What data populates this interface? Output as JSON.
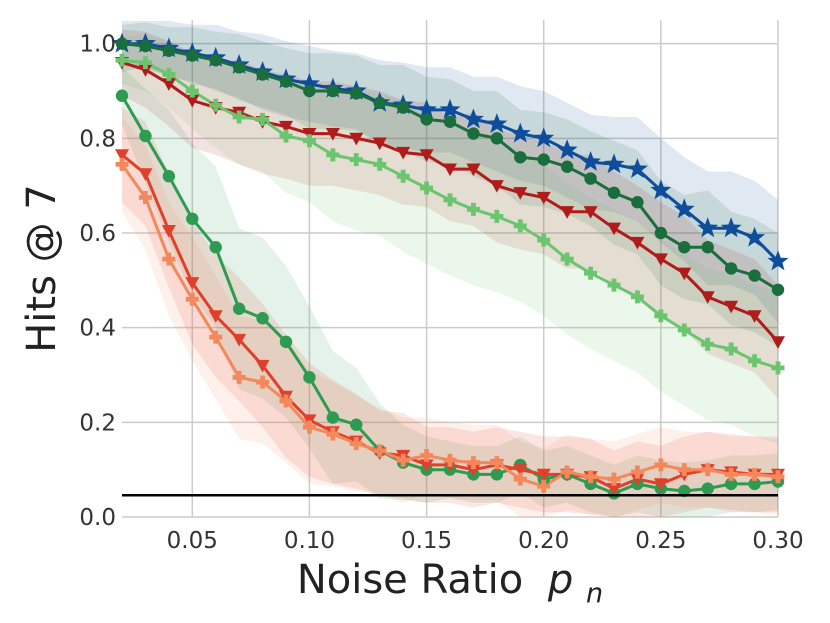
{
  "chart_data": {
    "type": "line",
    "title": "",
    "xlabel": "Noise Ratio",
    "xlabel_symbol": "p",
    "xlabel_subscript": "n",
    "ylabel": "Hits @ 7",
    "xlim": [
      0.02,
      0.3
    ],
    "ylim": [
      0.0,
      1.05
    ],
    "grid": true,
    "x_ticks": [
      0.05,
      0.1,
      0.15,
      0.2,
      0.25,
      0.3
    ],
    "x_tick_labels": [
      "0.05",
      "0.10",
      "0.15",
      "0.20",
      "0.25",
      "0.30"
    ],
    "y_ticks": [
      0.0,
      0.2,
      0.4,
      0.6,
      0.8,
      1.0
    ],
    "y_tick_labels": [
      "0.0",
      "0.2",
      "0.4",
      "0.6",
      "0.8",
      "1.0"
    ],
    "baseline": {
      "y": 0.046,
      "color": "#000000"
    },
    "x": [
      0.02,
      0.03,
      0.04,
      0.05,
      0.06,
      0.07,
      0.08,
      0.09,
      0.1,
      0.11,
      0.12,
      0.13,
      0.14,
      0.15,
      0.16,
      0.17,
      0.18,
      0.19,
      0.2,
      0.21,
      0.22,
      0.23,
      0.24,
      0.25,
      0.26,
      0.27,
      0.28,
      0.29,
      0.3
    ],
    "series": [
      {
        "name": "series-blue-star",
        "color": "#0e4d9c",
        "marker": "star",
        "values": [
          1.0,
          1.0,
          0.99,
          0.98,
          0.97,
          0.955,
          0.94,
          0.925,
          0.915,
          0.905,
          0.9,
          0.875,
          0.87,
          0.86,
          0.86,
          0.84,
          0.83,
          0.81,
          0.8,
          0.775,
          0.75,
          0.745,
          0.735,
          0.69,
          0.65,
          0.61,
          0.61,
          0.59,
          0.54
        ],
        "band": [
          0.06,
          0.05,
          0.06,
          0.06,
          0.07,
          0.07,
          0.08,
          0.08,
          0.08,
          0.08,
          0.08,
          0.09,
          0.09,
          0.09,
          0.09,
          0.09,
          0.1,
          0.1,
          0.1,
          0.1,
          0.1,
          0.1,
          0.11,
          0.11,
          0.11,
          0.12,
          0.12,
          0.12,
          0.13
        ]
      },
      {
        "name": "series-darkgreen-circle",
        "color": "#1a6e3c",
        "marker": "circle",
        "values": [
          1.0,
          0.995,
          0.985,
          0.975,
          0.965,
          0.95,
          0.935,
          0.92,
          0.9,
          0.9,
          0.895,
          0.875,
          0.865,
          0.84,
          0.835,
          0.81,
          0.8,
          0.76,
          0.755,
          0.74,
          0.715,
          0.685,
          0.665,
          0.6,
          0.57,
          0.57,
          0.525,
          0.51,
          0.48
        ],
        "band": [
          0.04,
          0.05,
          0.05,
          0.06,
          0.06,
          0.07,
          0.07,
          0.07,
          0.08,
          0.08,
          0.08,
          0.08,
          0.09,
          0.09,
          0.09,
          0.09,
          0.1,
          0.1,
          0.1,
          0.1,
          0.1,
          0.11,
          0.11,
          0.11,
          0.11,
          0.12,
          0.12,
          0.12,
          0.12
        ]
      },
      {
        "name": "series-darkred-triangle",
        "color": "#b01c1c",
        "marker": "triangle-down",
        "values": [
          0.96,
          0.945,
          0.915,
          0.88,
          0.865,
          0.855,
          0.835,
          0.825,
          0.81,
          0.81,
          0.8,
          0.79,
          0.77,
          0.765,
          0.735,
          0.735,
          0.7,
          0.685,
          0.675,
          0.645,
          0.645,
          0.61,
          0.58,
          0.545,
          0.515,
          0.465,
          0.445,
          0.425,
          0.37
        ],
        "band": [
          0.07,
          0.08,
          0.09,
          0.1,
          0.1,
          0.11,
          0.11,
          0.11,
          0.11,
          0.11,
          0.11,
          0.11,
          0.11,
          0.11,
          0.11,
          0.12,
          0.12,
          0.12,
          0.12,
          0.12,
          0.12,
          0.12,
          0.12,
          0.12,
          0.12,
          0.12,
          0.12,
          0.12,
          0.12
        ]
      },
      {
        "name": "series-lightgreen-plus",
        "color": "#6cc46f",
        "marker": "plus",
        "values": [
          0.965,
          0.96,
          0.935,
          0.9,
          0.87,
          0.845,
          0.84,
          0.805,
          0.795,
          0.765,
          0.755,
          0.745,
          0.72,
          0.695,
          0.67,
          0.65,
          0.635,
          0.615,
          0.585,
          0.545,
          0.515,
          0.49,
          0.465,
          0.425,
          0.395,
          0.365,
          0.355,
          0.33,
          0.315
        ],
        "band": [
          0.05,
          0.06,
          0.07,
          0.08,
          0.09,
          0.1,
          0.11,
          0.12,
          0.13,
          0.14,
          0.15,
          0.15,
          0.16,
          0.16,
          0.16,
          0.16,
          0.16,
          0.16,
          0.16,
          0.16,
          0.16,
          0.16,
          0.16,
          0.16,
          0.16,
          0.16,
          0.16,
          0.16,
          0.16
        ]
      },
      {
        "name": "series-green-circle",
        "color": "#2d9b52",
        "marker": "circle",
        "values": [
          0.89,
          0.805,
          0.72,
          0.63,
          0.57,
          0.44,
          0.42,
          0.37,
          0.295,
          0.21,
          0.195,
          0.14,
          0.115,
          0.1,
          0.1,
          0.09,
          0.09,
          0.11,
          0.08,
          0.09,
          0.07,
          0.05,
          0.07,
          0.06,
          0.055,
          0.06,
          0.07,
          0.07,
          0.075
        ],
        "band": [
          0.06,
          0.1,
          0.14,
          0.16,
          0.17,
          0.17,
          0.17,
          0.16,
          0.15,
          0.14,
          0.12,
          0.1,
          0.08,
          0.07,
          0.06,
          0.06,
          0.06,
          0.06,
          0.06,
          0.06,
          0.06,
          0.06,
          0.06,
          0.06,
          0.06,
          0.06,
          0.06,
          0.06,
          0.06
        ]
      },
      {
        "name": "series-red-triangle",
        "color": "#e0402b",
        "marker": "triangle-down",
        "values": [
          0.765,
          0.725,
          0.605,
          0.495,
          0.425,
          0.375,
          0.32,
          0.255,
          0.205,
          0.18,
          0.16,
          0.135,
          0.13,
          0.11,
          0.11,
          0.1,
          0.11,
          0.1,
          0.09,
          0.09,
          0.085,
          0.06,
          0.08,
          0.07,
          0.09,
          0.1,
          0.095,
          0.09,
          0.09
        ],
        "band": [
          0.1,
          0.11,
          0.12,
          0.13,
          0.13,
          0.13,
          0.13,
          0.13,
          0.12,
          0.11,
          0.1,
          0.09,
          0.09,
          0.08,
          0.08,
          0.08,
          0.08,
          0.08,
          0.08,
          0.08,
          0.08,
          0.08,
          0.08,
          0.08,
          0.08,
          0.08,
          0.08,
          0.08,
          0.08
        ]
      },
      {
        "name": "series-orange-plus",
        "color": "#f5885a",
        "marker": "plus",
        "values": [
          0.745,
          0.675,
          0.545,
          0.46,
          0.38,
          0.295,
          0.285,
          0.245,
          0.19,
          0.175,
          0.155,
          0.14,
          0.12,
          0.13,
          0.12,
          0.115,
          0.115,
          0.08,
          0.065,
          0.095,
          0.085,
          0.08,
          0.095,
          0.11,
          0.1,
          0.1,
          0.09,
          0.09,
          0.085
        ],
        "band": [
          0.1,
          0.11,
          0.12,
          0.13,
          0.13,
          0.13,
          0.13,
          0.13,
          0.12,
          0.11,
          0.1,
          0.09,
          0.09,
          0.08,
          0.08,
          0.08,
          0.08,
          0.08,
          0.08,
          0.08,
          0.08,
          0.08,
          0.08,
          0.08,
          0.08,
          0.08,
          0.08,
          0.08,
          0.08
        ]
      }
    ]
  }
}
